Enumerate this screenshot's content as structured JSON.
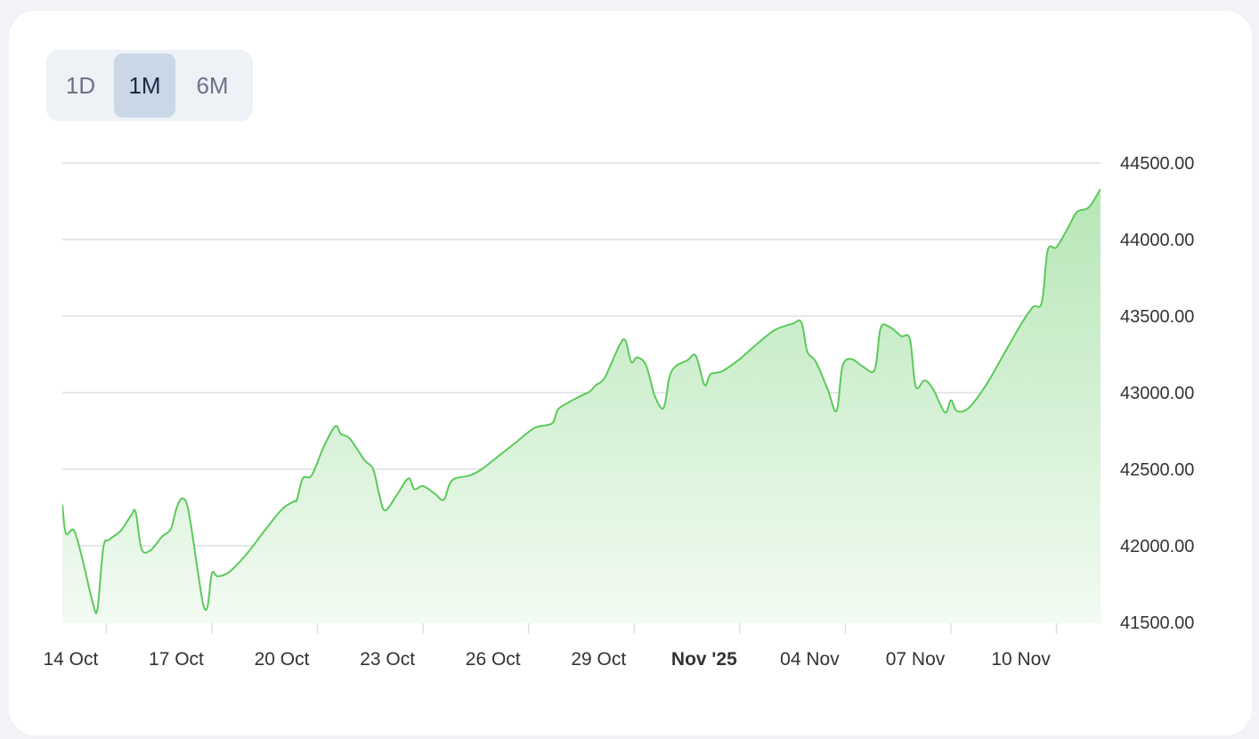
{
  "range_tabs": [
    {
      "label": "1D",
      "active": false
    },
    {
      "label": "1M",
      "active": true
    },
    {
      "label": "6M",
      "active": false
    }
  ],
  "colors": {
    "line": "#5cc95c",
    "fill_top": "#b7e6b7",
    "fill_bottom": "#f2fbf2",
    "grid": "#dcdfe4",
    "axis_text": "#333333",
    "active_tab_bg": "#c9d7e7"
  },
  "chart_data": {
    "type": "area",
    "y_ticks": [
      "44500.00",
      "44000.00",
      "43500.00",
      "43000.00",
      "42500.00",
      "42000.00",
      "41500.00"
    ],
    "ylim": [
      41500,
      44500
    ],
    "xlim": [
      "2025-10-13T18:00",
      "2025-11-12T06:00"
    ],
    "x_ticks": [
      {
        "date": "2025-10-15",
        "label": "14 Oct",
        "bold": false
      },
      {
        "date": "2025-10-18",
        "label": "17 Oct",
        "bold": false
      },
      {
        "date": "2025-10-21",
        "label": "20 Oct",
        "bold": false
      },
      {
        "date": "2025-10-24",
        "label": "23 Oct",
        "bold": false
      },
      {
        "date": "2025-10-27",
        "label": "26 Oct",
        "bold": false
      },
      {
        "date": "2025-10-30",
        "label": "29 Oct",
        "bold": false
      },
      {
        "date": "2025-11-02",
        "label": "Nov '25",
        "bold": true
      },
      {
        "date": "2025-11-05",
        "label": "04 Nov",
        "bold": false
      },
      {
        "date": "2025-11-08",
        "label": "07 Nov",
        "bold": false
      },
      {
        "date": "2025-11-11",
        "label": "10 Nov",
        "bold": false
      }
    ],
    "series": [
      {
        "points": [
          [
            "2025-10-13T18:00",
            42270
          ],
          [
            "2025-10-13T20:30",
            42080
          ],
          [
            "2025-10-14T02:00",
            42100
          ],
          [
            "2025-10-14T08:00",
            41900
          ],
          [
            "2025-10-14T15:00",
            41620
          ],
          [
            "2025-10-14T18:00",
            41590
          ],
          [
            "2025-10-14T22:00",
            41990
          ],
          [
            "2025-10-15T02:00",
            42040
          ],
          [
            "2025-10-15T10:00",
            42100
          ],
          [
            "2025-10-15T17:00",
            42200
          ],
          [
            "2025-10-15T20:00",
            42220
          ],
          [
            "2025-10-16T00:00",
            41980
          ],
          [
            "2025-10-16T06:00",
            41970
          ],
          [
            "2025-10-16T14:00",
            42060
          ],
          [
            "2025-10-16T20:00",
            42110
          ],
          [
            "2025-10-17T00:00",
            42250
          ],
          [
            "2025-10-17T04:00",
            42310
          ],
          [
            "2025-10-17T08:00",
            42230
          ],
          [
            "2025-10-17T14:00",
            41860
          ],
          [
            "2025-10-17T18:00",
            41620
          ],
          [
            "2025-10-17T21:00",
            41600
          ],
          [
            "2025-10-18T00:00",
            41820
          ],
          [
            "2025-10-18T04:00",
            41800
          ],
          [
            "2025-10-18T12:00",
            41830
          ],
          [
            "2025-10-19T00:00",
            41950
          ],
          [
            "2025-10-19T12:00",
            42100
          ],
          [
            "2025-10-20T00:00",
            42240
          ],
          [
            "2025-10-20T08:00",
            42290
          ],
          [
            "2025-10-20T10:00",
            42300
          ],
          [
            "2025-10-20T14:00",
            42440
          ],
          [
            "2025-10-20T20:00",
            42460
          ],
          [
            "2025-10-21T04:00",
            42640
          ],
          [
            "2025-10-21T12:00",
            42780
          ],
          [
            "2025-10-21T16:00",
            42730
          ],
          [
            "2025-10-21T22:00",
            42700
          ],
          [
            "2025-10-22T08:00",
            42560
          ],
          [
            "2025-10-22T14:00",
            42500
          ],
          [
            "2025-10-22T18:00",
            42340
          ],
          [
            "2025-10-22T22:00",
            42230
          ],
          [
            "2025-10-23T06:00",
            42330
          ],
          [
            "2025-10-23T14:00",
            42440
          ],
          [
            "2025-10-23T18:00",
            42370
          ],
          [
            "2025-10-24T00:00",
            42390
          ],
          [
            "2025-10-24T08:00",
            42340
          ],
          [
            "2025-10-24T14:00",
            42300
          ],
          [
            "2025-10-24T18:00",
            42400
          ],
          [
            "2025-10-24T22:00",
            42440
          ],
          [
            "2025-10-25T08:00",
            42460
          ],
          [
            "2025-10-25T16:00",
            42500
          ],
          [
            "2025-10-26T04:00",
            42590
          ],
          [
            "2025-10-26T16:00",
            42680
          ],
          [
            "2025-10-27T04:00",
            42770
          ],
          [
            "2025-10-27T16:00",
            42800
          ],
          [
            "2025-10-27T20:00",
            42890
          ],
          [
            "2025-10-28T04:00",
            42940
          ],
          [
            "2025-10-28T12:00",
            42980
          ],
          [
            "2025-10-28T18:00",
            43010
          ],
          [
            "2025-10-28T22:00",
            43050
          ],
          [
            "2025-10-29T04:00",
            43100
          ],
          [
            "2025-10-29T14:00",
            43310
          ],
          [
            "2025-10-29T18:00",
            43340
          ],
          [
            "2025-10-29T22:00",
            43200
          ],
          [
            "2025-10-30T02:00",
            43230
          ],
          [
            "2025-10-30T08:00",
            43180
          ],
          [
            "2025-10-30T14:00",
            42980
          ],
          [
            "2025-10-30T20:00",
            42900
          ],
          [
            "2025-10-31T00:00",
            43100
          ],
          [
            "2025-10-31T04:00",
            43170
          ],
          [
            "2025-10-31T12:00",
            43210
          ],
          [
            "2025-10-31T18:00",
            43240
          ],
          [
            "2025-11-01T00:00",
            43050
          ],
          [
            "2025-11-01T04:00",
            43120
          ],
          [
            "2025-11-01T12:00",
            43140
          ],
          [
            "2025-11-02T00:00",
            43220
          ],
          [
            "2025-11-02T12:00",
            43320
          ],
          [
            "2025-11-03T00:00",
            43410
          ],
          [
            "2025-11-03T12:00",
            43450
          ],
          [
            "2025-11-03T18:00",
            43460
          ],
          [
            "2025-11-03T22:00",
            43270
          ],
          [
            "2025-11-04T04:00",
            43200
          ],
          [
            "2025-11-04T12:00",
            43020
          ],
          [
            "2025-11-04T18:00",
            42880
          ],
          [
            "2025-11-04T22:00",
            43170
          ],
          [
            "2025-11-05T04:00",
            43220
          ],
          [
            "2025-11-05T12:00",
            43170
          ],
          [
            "2025-11-05T20:00",
            43150
          ],
          [
            "2025-11-06T00:00",
            43420
          ],
          [
            "2025-11-06T06:00",
            43430
          ],
          [
            "2025-11-06T14:00",
            43370
          ],
          [
            "2025-11-06T20:00",
            43350
          ],
          [
            "2025-11-07T00:00",
            43040
          ],
          [
            "2025-11-07T06:00",
            43080
          ],
          [
            "2025-11-07T12:00",
            43020
          ],
          [
            "2025-11-07T20:00",
            42870
          ],
          [
            "2025-11-08T00:00",
            42950
          ],
          [
            "2025-11-08T04:00",
            42880
          ],
          [
            "2025-11-08T12:00",
            42900
          ],
          [
            "2025-11-09T00:00",
            43050
          ],
          [
            "2025-11-09T12:00",
            43250
          ],
          [
            "2025-11-10T00:00",
            43450
          ],
          [
            "2025-11-10T08:00",
            43560
          ],
          [
            "2025-11-10T14:00",
            43590
          ],
          [
            "2025-11-10T18:00",
            43930
          ],
          [
            "2025-11-11T00:00",
            43950
          ],
          [
            "2025-11-11T08:00",
            44080
          ],
          [
            "2025-11-11T14:00",
            44180
          ],
          [
            "2025-11-11T22:00",
            44210
          ],
          [
            "2025-11-12T06:00",
            44330
          ]
        ]
      }
    ]
  }
}
